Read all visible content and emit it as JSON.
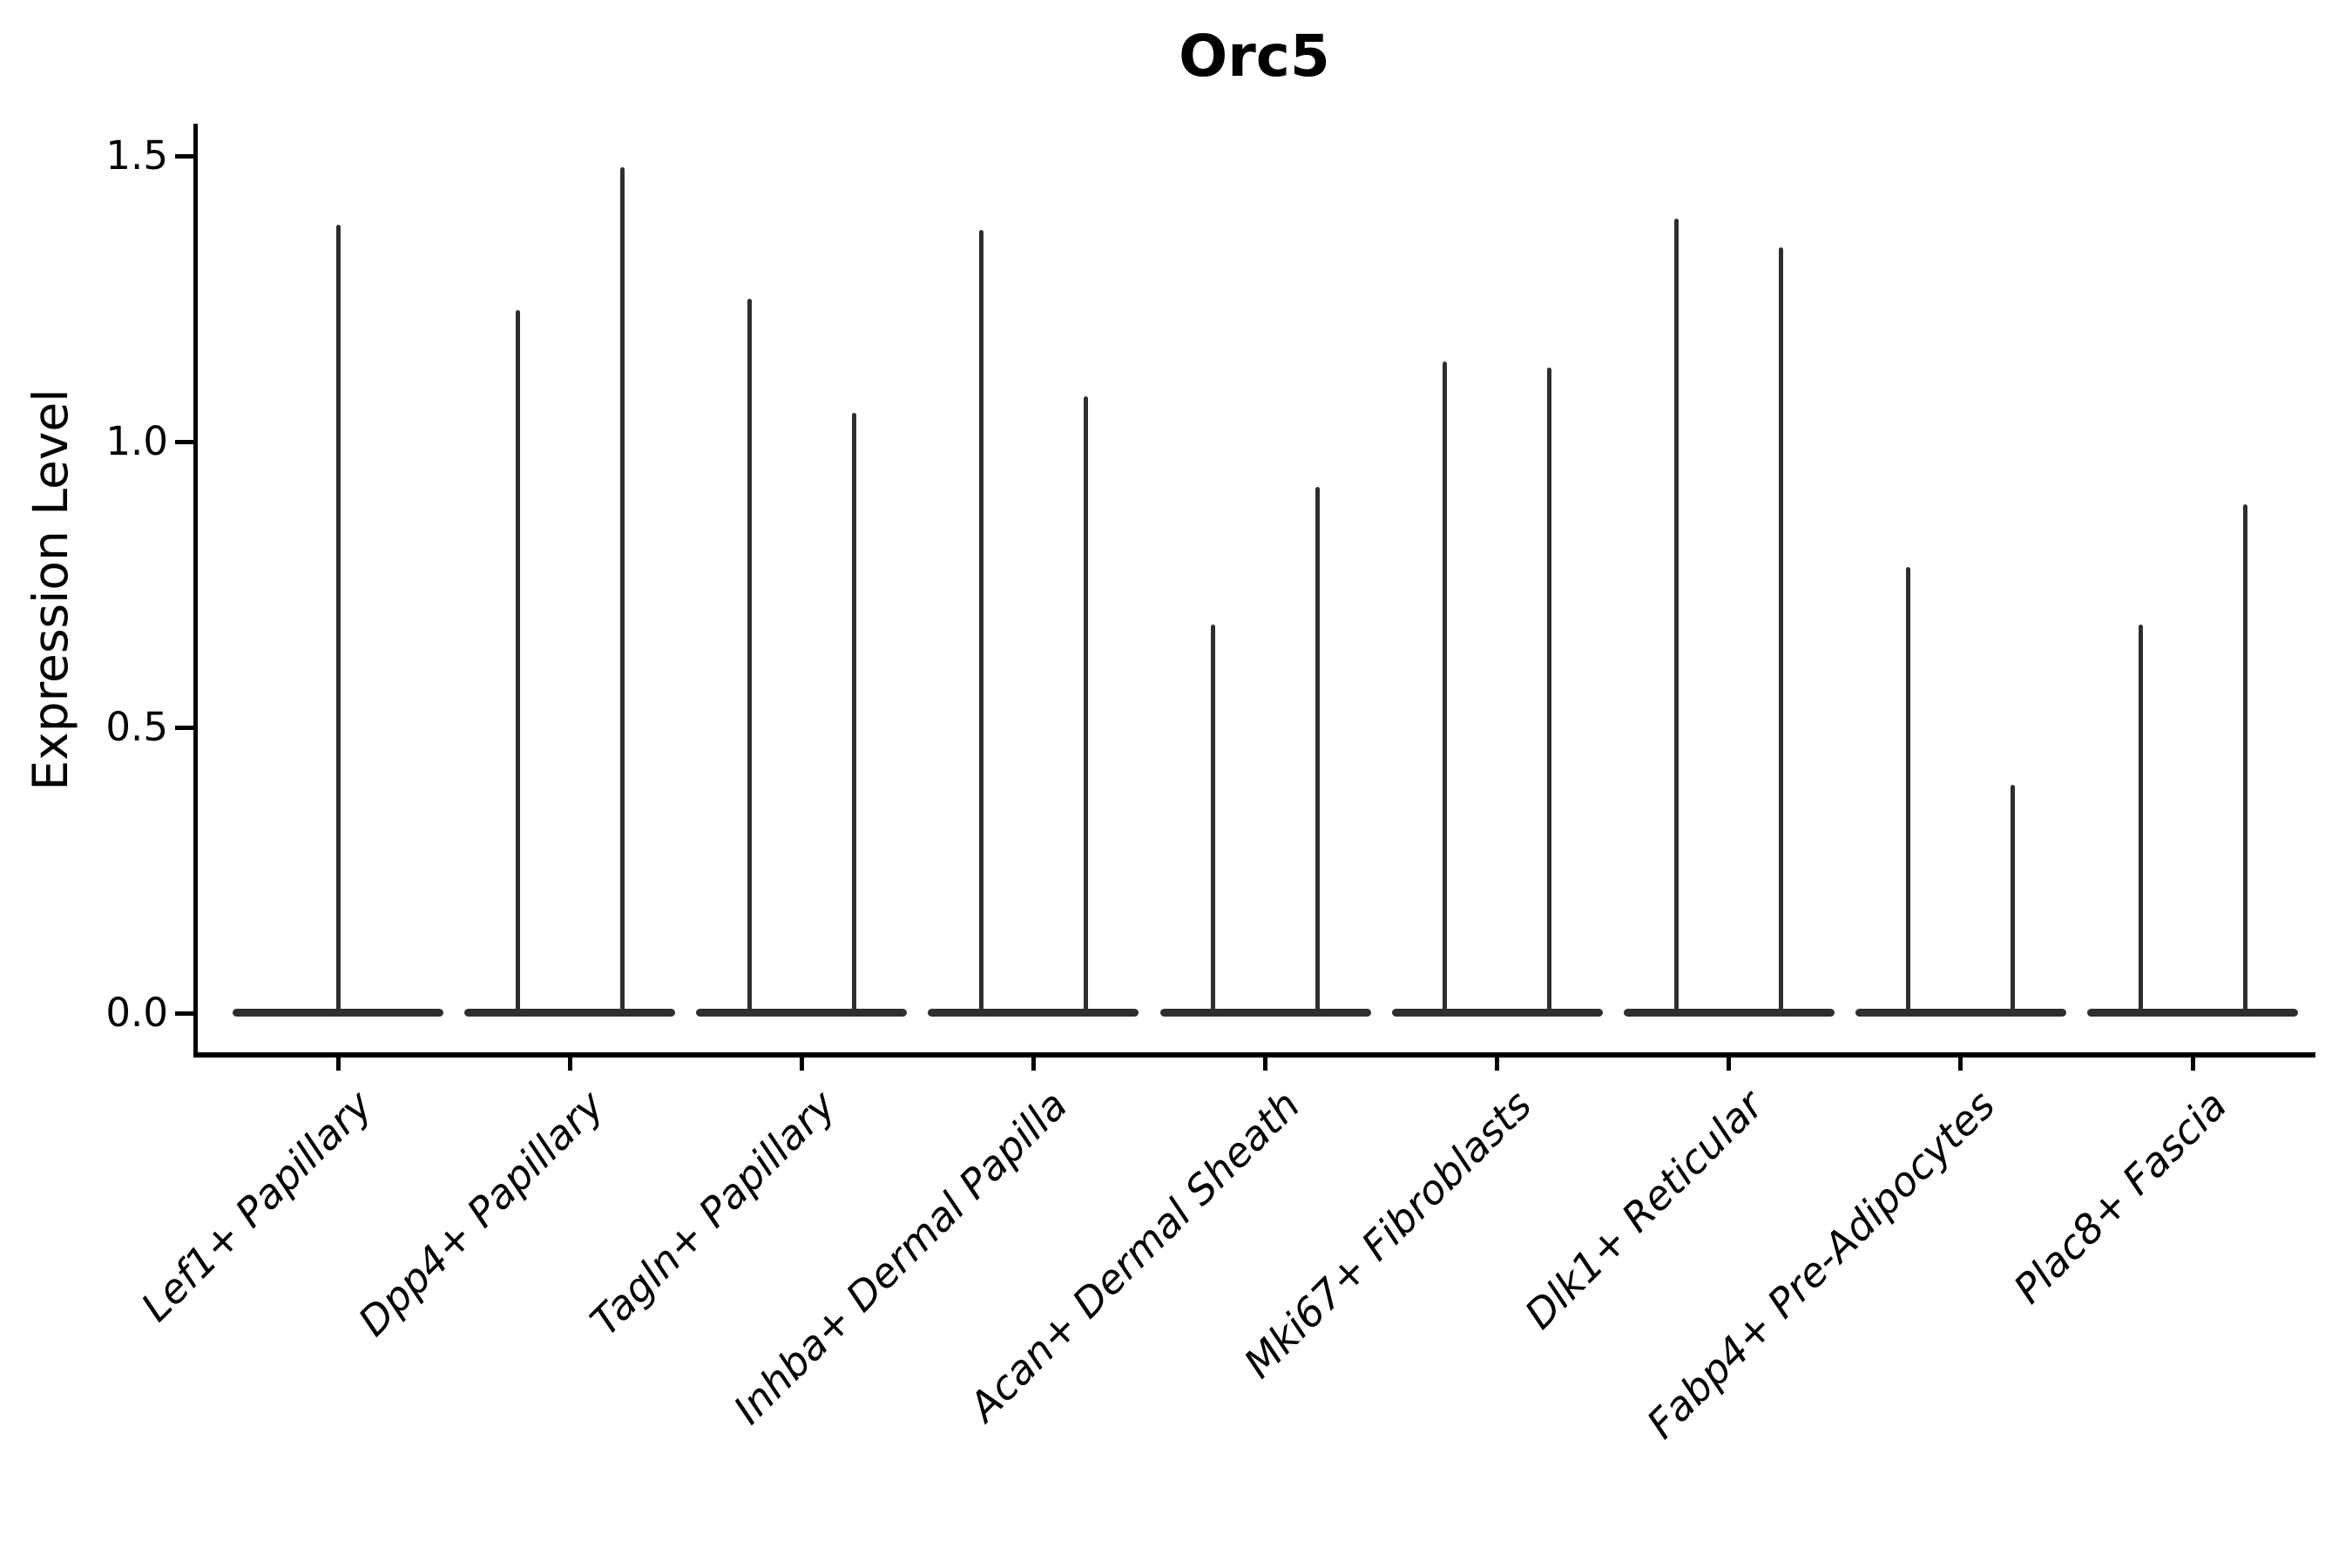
{
  "title": "Orc5",
  "ylabel": "Expression Level",
  "colors": {
    "violin": "#2e2e2e",
    "axis": "#000000",
    "background": "#ffffff"
  },
  "chart_data": {
    "type": "violin",
    "title": "Orc5",
    "xlabel": "",
    "ylabel": "Expression Level",
    "ylim": [
      0.0,
      1.5
    ],
    "yticks": [
      {
        "value": 0.0,
        "label": "0.0"
      },
      {
        "value": 0.5,
        "label": "0.5"
      },
      {
        "value": 1.0,
        "label": "1.0"
      },
      {
        "value": 1.5,
        "label": "1.5"
      }
    ],
    "grid": false,
    "legend": "none",
    "x_tick_label_rotation_deg": 45,
    "description": "Violin plot of Orc5 expression per fibroblast subtype; expression mass is concentrated at 0 (wide flat base) with thin spikes reaching the maximum expression of each sub-violin.",
    "categories": [
      "Lef1+ Papillary",
      "Dpp4+ Papillary",
      "Tagln+ Papillary",
      "Inhba+ Dermal Papilla",
      "Acan+ Dermal Sheath",
      "Mki67+ Fibroblasts",
      "Dlk1+ Reticular",
      "Fabp4+ Pre-Adipocytes",
      "Plac8+ Fascia"
    ],
    "series": [
      {
        "category": "Lef1+ Papillary",
        "base_value": 0.0,
        "violins": [
          {
            "pos": "center",
            "max": 1.38
          }
        ]
      },
      {
        "category": "Dpp4+ Papillary",
        "base_value": 0.0,
        "violins": [
          {
            "pos": "left",
            "max": 1.23
          },
          {
            "pos": "right",
            "max": 1.48
          }
        ]
      },
      {
        "category": "Tagln+ Papillary",
        "base_value": 0.0,
        "violins": [
          {
            "pos": "left",
            "max": 1.25
          },
          {
            "pos": "right",
            "max": 1.05
          }
        ]
      },
      {
        "category": "Inhba+ Dermal Papilla",
        "base_value": 0.0,
        "violins": [
          {
            "pos": "left",
            "max": 1.37
          },
          {
            "pos": "right",
            "max": 1.08
          }
        ]
      },
      {
        "category": "Acan+ Dermal Sheath",
        "base_value": 0.0,
        "violins": [
          {
            "pos": "left",
            "max": 0.68
          },
          {
            "pos": "right",
            "max": 0.92
          }
        ]
      },
      {
        "category": "Mki67+ Fibroblasts",
        "base_value": 0.0,
        "violins": [
          {
            "pos": "left",
            "max": 1.14
          },
          {
            "pos": "right",
            "max": 1.13
          }
        ]
      },
      {
        "category": "Dlk1+ Reticular",
        "base_value": 0.0,
        "violins": [
          {
            "pos": "left",
            "max": 1.39
          },
          {
            "pos": "right",
            "max": 1.34
          }
        ]
      },
      {
        "category": "Fabp4+ Pre-Adipocytes",
        "base_value": 0.0,
        "violins": [
          {
            "pos": "left",
            "max": 0.78
          },
          {
            "pos": "right",
            "max": 0.4
          }
        ]
      },
      {
        "category": "Plac8+ Fascia",
        "base_value": 0.0,
        "violins": [
          {
            "pos": "left",
            "max": 0.68
          },
          {
            "pos": "right",
            "max": 0.89
          }
        ]
      }
    ]
  }
}
